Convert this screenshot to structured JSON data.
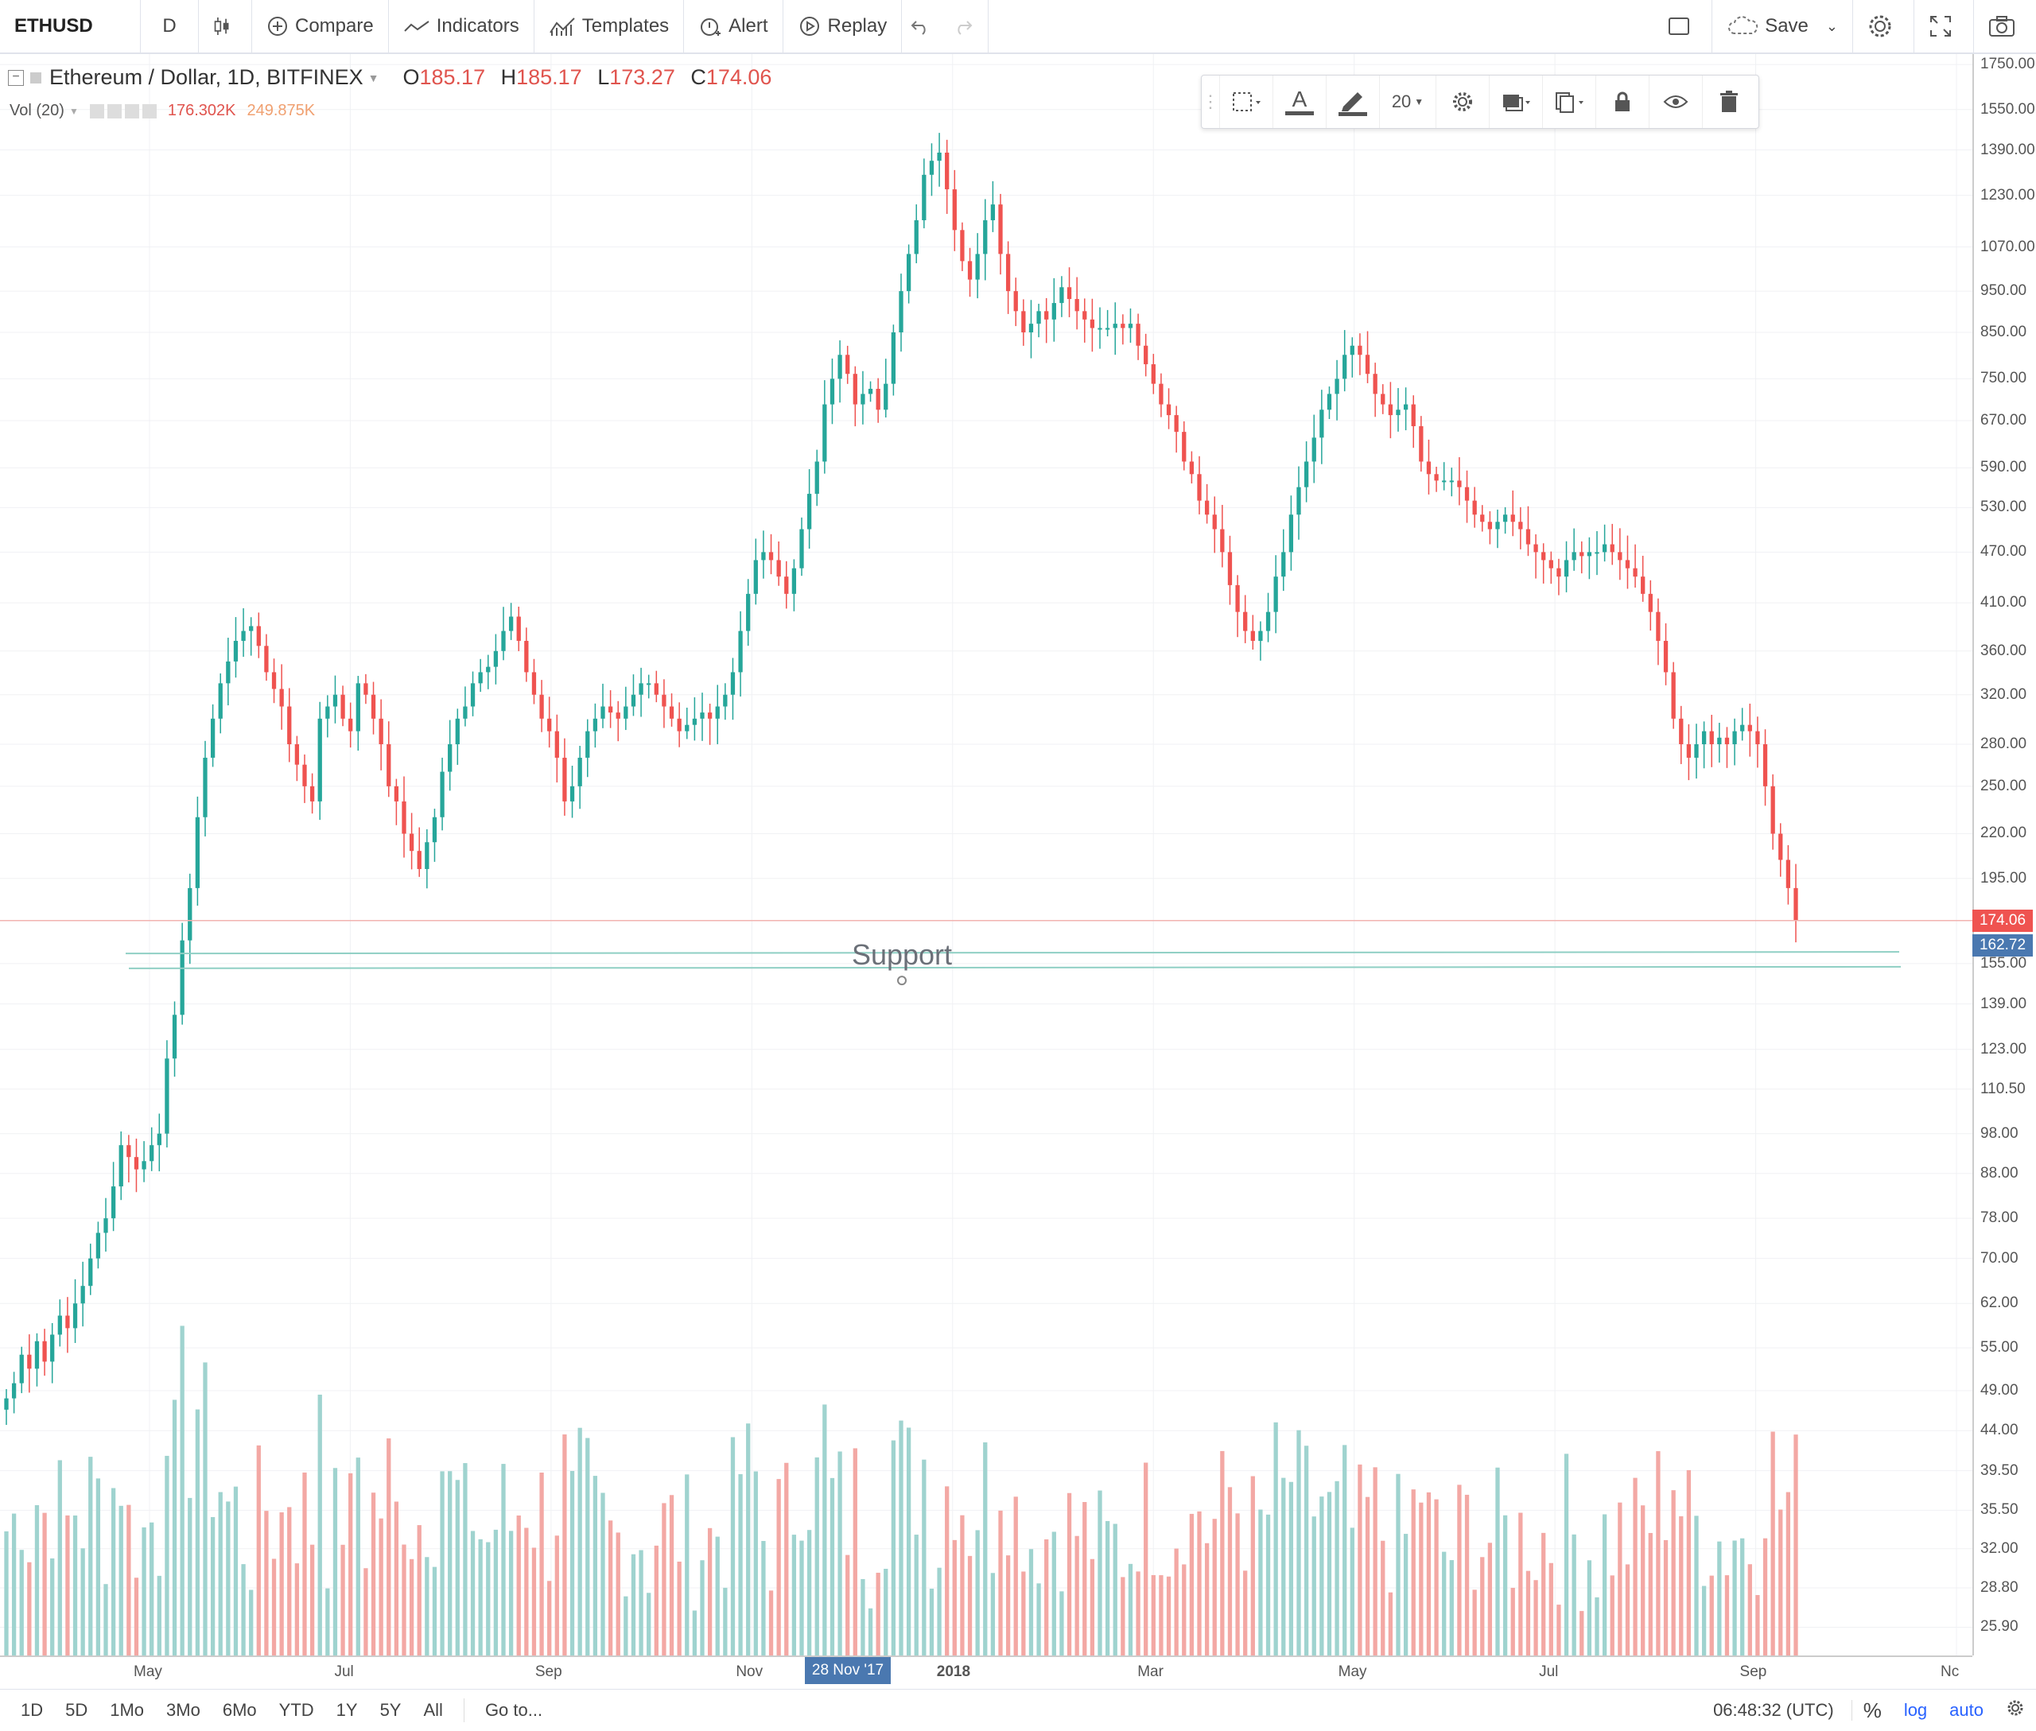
{
  "toolbar": {
    "symbol": "ETHUSD",
    "interval": "D",
    "compare": "Compare",
    "indicators": "Indicators",
    "templates": "Templates",
    "alert": "Alert",
    "replay": "Replay",
    "save": "Save"
  },
  "legend": {
    "title": "Ethereum / Dollar, 1D, BITFINEX",
    "o_label": "O",
    "o": "185.17",
    "h_label": "H",
    "h": "185.17",
    "l_label": "L",
    "l": "173.27",
    "c_label": "C",
    "c": "174.06",
    "vol_label": "Vol (20)",
    "vol1": "176.302K",
    "vol2": "249.875K"
  },
  "drawing_toolbar": {
    "font_size": "20"
  },
  "price_axis": {
    "ticks": [
      "1750.00",
      "1550.00",
      "1390.00",
      "1230.00",
      "1070.00",
      "950.00",
      "850.00",
      "750.00",
      "670.00",
      "590.00",
      "530.00",
      "470.00",
      "410.00",
      "360.00",
      "320.00",
      "280.00",
      "250.00",
      "220.00",
      "195.00",
      "155.00",
      "139.00",
      "123.00",
      "110.50",
      "98.00",
      "88.00",
      "78.00",
      "70.00",
      "62.00",
      "55.00",
      "49.00",
      "44.00",
      "39.50",
      "35.50",
      "32.00",
      "28.80",
      "25.90"
    ],
    "last_price": "174.06",
    "support_price": "162.72"
  },
  "time_axis": {
    "ticks": [
      "May",
      "Jul",
      "Sep",
      "Nov",
      "2018",
      "Mar",
      "May",
      "Jul",
      "Sep",
      "Nc"
    ],
    "cursor_label": "28 Nov '17"
  },
  "annotation": {
    "support_text": "Support"
  },
  "bottom_bar": {
    "ranges": [
      "1D",
      "5D",
      "1Mo",
      "3Mo",
      "6Mo",
      "YTD",
      "1Y",
      "5Y",
      "All"
    ],
    "goto": "Go to...",
    "clock": "06:48:32 (UTC)",
    "percent": "%",
    "log": "log",
    "auto": "auto"
  },
  "colors": {
    "up": "#26a69a",
    "down": "#ef5350",
    "vol_up": "#9fd3cf",
    "vol_down": "#f3a8a4",
    "support_line": "#8fcfc4",
    "last_price_bg": "#ef5350",
    "support_price_bg": "#4a78b0"
  },
  "chart_data": {
    "type": "candlestick",
    "scale": "log",
    "ylim": [
      24,
      1800
    ],
    "close": [
      48,
      50,
      54,
      52,
      56,
      53,
      57,
      60,
      58,
      62,
      65,
      70,
      75,
      78,
      85,
      95,
      92,
      89,
      91,
      95,
      98,
      120,
      135,
      165,
      190,
      230,
      270,
      300,
      330,
      350,
      370,
      380,
      385,
      365,
      340,
      325,
      310,
      280,
      265,
      250,
      240,
      300,
      310,
      320,
      300,
      290,
      330,
      320,
      300,
      280,
      250,
      240,
      220,
      210,
      200,
      215,
      230,
      260,
      280,
      300,
      310,
      330,
      340,
      345,
      360,
      380,
      395,
      370,
      340,
      320,
      300,
      290,
      270,
      240,
      250,
      270,
      290,
      300,
      310,
      305,
      300,
      310,
      320,
      330,
      330,
      320,
      310,
      300,
      290,
      295,
      300,
      305,
      300,
      310,
      320,
      340,
      380,
      420,
      460,
      470,
      460,
      440,
      420,
      450,
      500,
      550,
      600,
      700,
      750,
      800,
      760,
      700,
      720,
      730,
      690,
      740,
      850,
      950,
      1050,
      1150,
      1300,
      1350,
      1380,
      1250,
      1120,
      1030,
      980,
      1050,
      1150,
      1200,
      1050,
      950,
      900,
      850,
      870,
      900,
      880,
      920,
      960,
      930,
      900,
      880,
      860,
      860,
      860,
      870,
      860,
      870,
      820,
      780,
      740,
      700,
      680,
      650,
      600,
      580,
      540,
      520,
      500,
      470,
      430,
      400,
      380,
      370,
      380,
      400,
      440,
      470,
      520,
      560,
      600,
      640,
      690,
      720,
      750,
      800,
      820,
      800,
      760,
      720,
      700,
      680,
      690,
      700,
      660,
      600,
      580,
      570,
      570,
      570,
      560,
      540,
      520,
      510,
      500,
      510,
      520,
      510,
      500,
      480,
      470,
      460,
      450,
      440,
      460,
      470,
      465,
      470,
      470,
      480,
      470,
      460,
      450,
      440,
      420,
      400,
      370,
      340,
      300,
      280,
      270,
      280,
      290,
      280,
      285,
      280,
      290,
      295,
      290,
      280,
      250,
      220,
      205,
      190,
      174
    ],
    "last": 174.06,
    "support_levels": [
      162.72,
      155.0
    ],
    "volume_ylim": [
      0,
      10
    ]
  }
}
